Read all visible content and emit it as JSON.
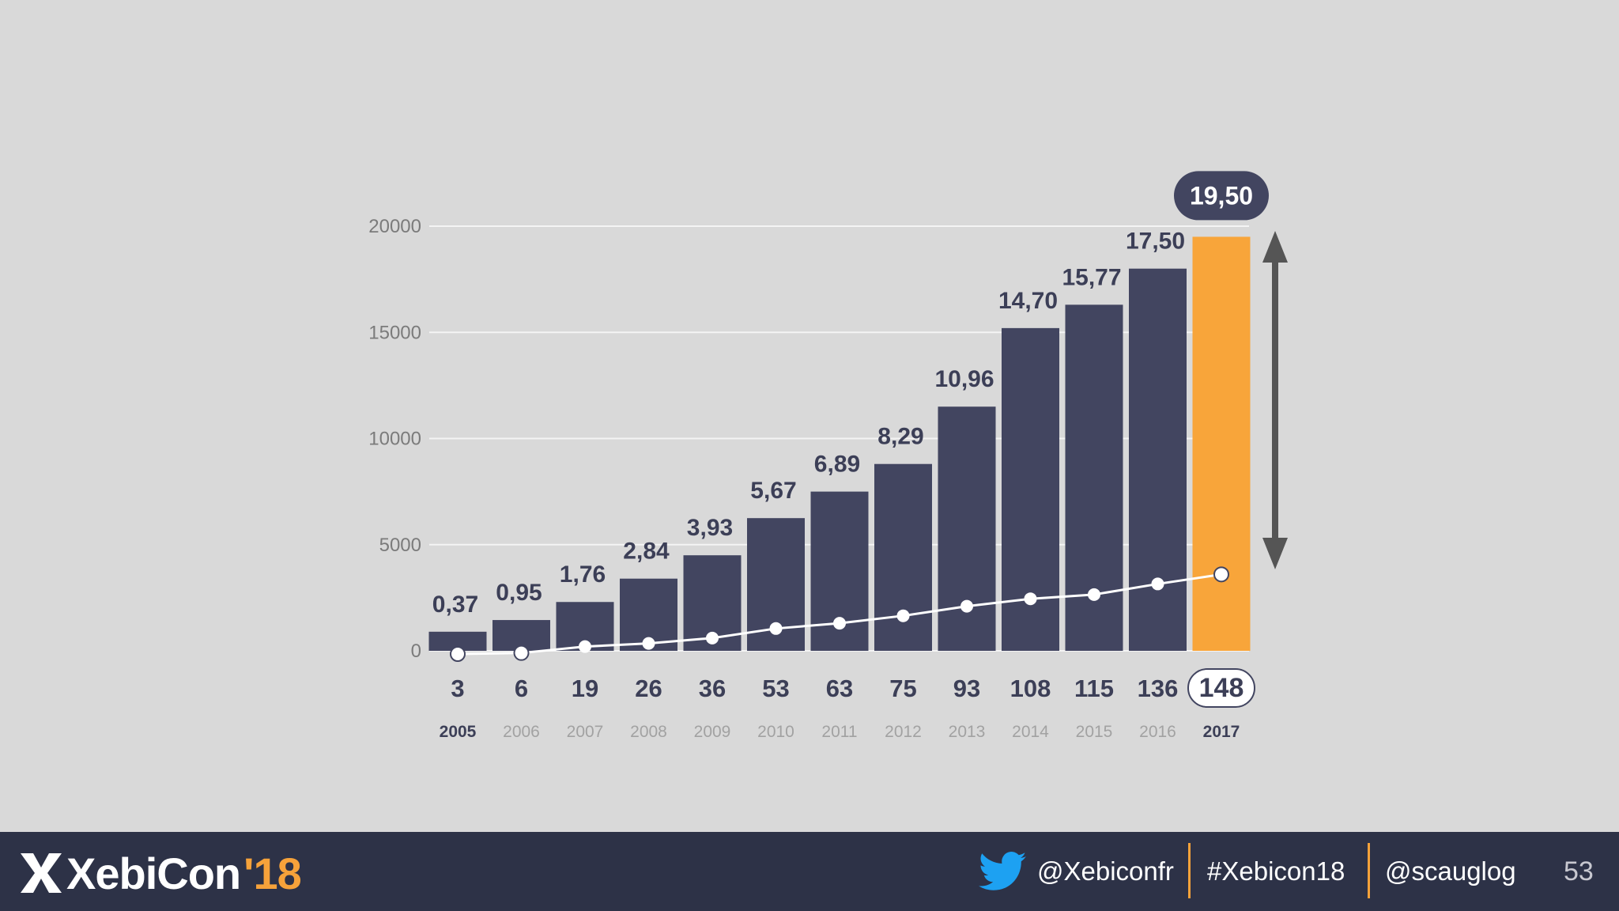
{
  "chart_data": {
    "type": "bar",
    "title": "",
    "xlabel": "",
    "ylabel": "",
    "ylim": [
      0,
      20000
    ],
    "yticks": [
      0,
      5000,
      10000,
      15000,
      20000
    ],
    "grid": true,
    "categories": [
      "2005",
      "2006",
      "2007",
      "2008",
      "2009",
      "2010",
      "2011",
      "2012",
      "2013",
      "2014",
      "2015",
      "2016",
      "2017"
    ],
    "highlight_index": 12,
    "series": [
      {
        "name": "bars",
        "values": [
          900,
          1450,
          2300,
          3400,
          4500,
          6250,
          7500,
          8800,
          11500,
          15200,
          16300,
          18000,
          19500
        ],
        "labels": [
          "0,37",
          "0,95",
          "1,76",
          "2,84",
          "3,93",
          "5,67",
          "6,89",
          "8,29",
          "10,96",
          "14,70",
          "15,77",
          "17,50",
          "19,50"
        ]
      },
      {
        "name": "line",
        "type": "line",
        "values": [
          -150,
          -100,
          200,
          350,
          600,
          1050,
          1300,
          1650,
          2100,
          2450,
          2650,
          3150,
          3600
        ],
        "labels": [
          "3",
          "6",
          "19",
          "26",
          "36",
          "53",
          "63",
          "75",
          "93",
          "108",
          "115",
          "136",
          "148"
        ]
      }
    ],
    "annotations": [
      "double-headed arrow beside the 2017 bar"
    ]
  },
  "colors": {
    "bar": "#424560",
    "highlight_bar": "#f8a53a",
    "text_dark": "#3c3f57",
    "footer_bg": "#2d3247",
    "accent": "#f6a23a"
  },
  "footer": {
    "logo_name": "XebiCon",
    "logo_year": "'18",
    "twitter_icon": "twitter-bird-icon",
    "twitter_handle": "@Xebiconfr",
    "hashtag": "#Xebicon18",
    "speaker_handle": "@scauglog",
    "page_number": "53"
  }
}
